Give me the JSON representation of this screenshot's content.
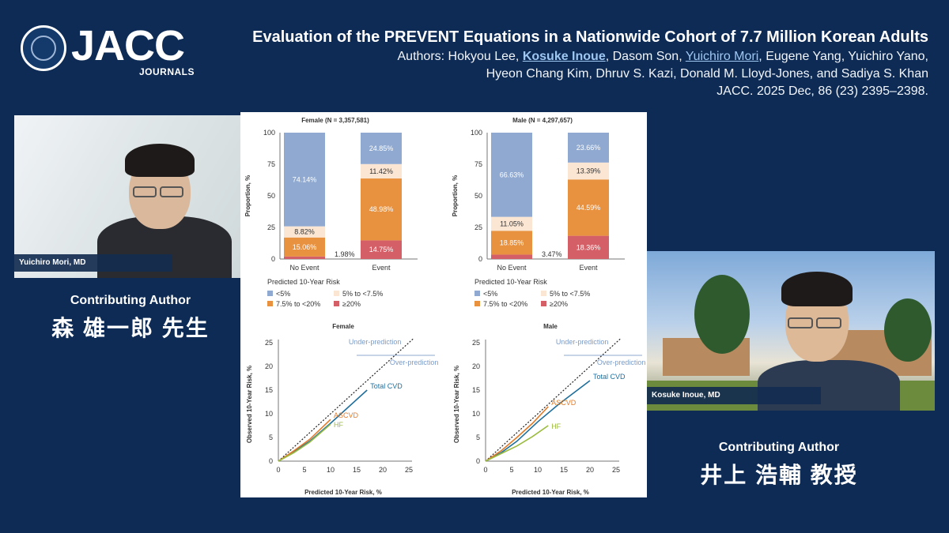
{
  "logo": {
    "word": "JACC",
    "sub": "JOURNALS",
    "icon": "heart-seal-icon"
  },
  "header": {
    "title": "Evaluation of the PREVENT Equations in a Nationwide Cohort of 7.7 Million Korean Adults",
    "authors_prefix": "Authors: Hokyou Lee, ",
    "author_hl1": "Kosuke Inoue",
    "authors_mid": ", Dasom Son, ",
    "author_hl2": "Yuichiro Mori",
    "authors_suffix": ", Eugene Yang, Yuichiro Yano,",
    "authors_line2": "Hyeon Chang Kim, Dhruv S. Kazi, Donald M. Lloyd-Jones, and Sadiya S. Khan",
    "citation": "JACC. 2025 Dec, 86 (23) 2395–2398."
  },
  "participants": {
    "left": {
      "name": "Yuichiro Mori, MD",
      "role": "Contributing Author",
      "jp_name": "森 雄一郎 先生"
    },
    "right": {
      "name": "Kosuke Inoue, MD",
      "role": "Contributing Author",
      "jp_name": "井上 浩輔 教授"
    }
  },
  "chart_data": [
    {
      "type": "bar",
      "title": "Female (N = 3,357,581)",
      "ylabel": "Proportion, %",
      "ylim": [
        0,
        100
      ],
      "yticks": [
        "0",
        "25",
        "50",
        "75",
        "100"
      ],
      "categories": [
        "No Event",
        "Event"
      ],
      "series": [
        {
          "name": "≥20%",
          "values": [
            1.98,
            14.75
          ]
        },
        {
          "name": "7.5% to <20%",
          "values": [
            15.06,
            48.98
          ]
        },
        {
          "name": "5% to <7.5%",
          "values": [
            8.82,
            11.42
          ]
        },
        {
          "name": "<5%",
          "values": [
            74.14,
            24.85
          ]
        }
      ],
      "labels": [
        [
          "1.98%",
          "14.75%"
        ],
        [
          "15.06%",
          "48.98%"
        ],
        [
          "8.82%",
          "11.42%"
        ],
        [
          "74.14%",
          "24.85%"
        ]
      ],
      "legend_title": "Predicted 10-Year Risk",
      "colors": [
        "#d45f66",
        "#e8913f",
        "#fbe6d3",
        "#8fa9d1"
      ]
    },
    {
      "type": "bar",
      "title": "Male (N = 4,297,657)",
      "ylabel": "Proportion, %",
      "ylim": [
        0,
        100
      ],
      "yticks": [
        "0",
        "25",
        "50",
        "75",
        "100"
      ],
      "categories": [
        "No Event",
        "Event"
      ],
      "series": [
        {
          "name": "≥20%",
          "values": [
            3.47,
            18.36
          ]
        },
        {
          "name": "7.5% to <20%",
          "values": [
            18.85,
            44.59
          ]
        },
        {
          "name": "5% to <7.5%",
          "values": [
            11.05,
            13.39
          ]
        },
        {
          "name": "<5%",
          "values": [
            66.63,
            23.66
          ]
        }
      ],
      "labels": [
        [
          "3.47%",
          "18.36%"
        ],
        [
          "18.85%",
          "44.59%"
        ],
        [
          "11.05%",
          "13.39%"
        ],
        [
          "66.63%",
          "23.66%"
        ]
      ],
      "legend_title": "Predicted 10-Year Risk",
      "colors": [
        "#d45f66",
        "#e8913f",
        "#fbe6d3",
        "#8fa9d1"
      ]
    },
    {
      "type": "line",
      "title": "Female",
      "xlabel": "Predicted 10-Year Risk, %",
      "ylabel": "Observed 10-Year Risk, %",
      "xlim": [
        0,
        25
      ],
      "ylim": [
        0,
        25
      ],
      "ticks": [
        "0",
        "5",
        "10",
        "15",
        "20",
        "25"
      ],
      "series": [
        {
          "name": "Total CVD",
          "color": "#1f6e9c",
          "points": [
            [
              0,
              0
            ],
            [
              3,
              2
            ],
            [
              6,
              4.2
            ],
            [
              10,
              8
            ],
            [
              13,
              11
            ],
            [
              17,
              15
            ]
          ]
        },
        {
          "name": "ASCVD",
          "color": "#e07b2a",
          "points": [
            [
              0,
              0
            ],
            [
              3,
              2.2
            ],
            [
              6,
              4.6
            ],
            [
              10,
              8.8
            ]
          ]
        },
        {
          "name": "HF",
          "color": "#9bbb3f",
          "points": [
            [
              0,
              0
            ],
            [
              3,
              1.8
            ],
            [
              6,
              4
            ],
            [
              10,
              7.8
            ]
          ]
        }
      ],
      "annotations": [
        "Under-prediction",
        "Over-prediction"
      ]
    },
    {
      "type": "line",
      "title": "Male",
      "xlabel": "Predicted 10-Year Risk, %",
      "ylabel": "Observed 10-Year Risk, %",
      "xlim": [
        0,
        25
      ],
      "ylim": [
        0,
        25
      ],
      "ticks": [
        "0",
        "5",
        "10",
        "15",
        "20",
        "25"
      ],
      "series": [
        {
          "name": "Total CVD",
          "color": "#1f6e9c",
          "points": [
            [
              0,
              0
            ],
            [
              3,
              1.8
            ],
            [
              6,
              4.2
            ],
            [
              10,
              8.3
            ],
            [
              14,
              12
            ],
            [
              20,
              17
            ]
          ]
        },
        {
          "name": "ASCVD",
          "color": "#e07b2a",
          "points": [
            [
              0,
              0
            ],
            [
              3,
              2.2
            ],
            [
              6,
              5
            ],
            [
              9,
              8
            ],
            [
              12,
              11.5
            ]
          ]
        },
        {
          "name": "HF",
          "color": "#9bbb3f",
          "points": [
            [
              0,
              0
            ],
            [
              3,
              1.6
            ],
            [
              6,
              3.2
            ],
            [
              9,
              5.2
            ],
            [
              12,
              7.5
            ]
          ]
        }
      ],
      "annotations": [
        "Under-prediction",
        "Over-prediction"
      ]
    }
  ]
}
